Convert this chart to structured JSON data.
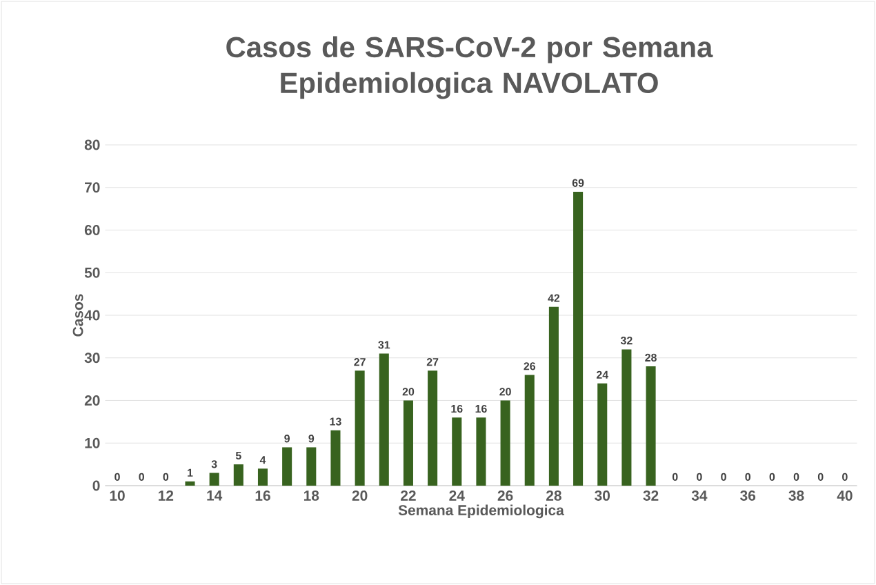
{
  "chart_data": {
    "type": "bar",
    "title": "Casos de SARS-CoV-2 por Semana Epidemiologica NAVOLATO",
    "xlabel": "Semana Epidemiologica",
    "ylabel": "Casos",
    "categories": [
      "10",
      null,
      "12",
      null,
      "14",
      null,
      "16",
      null,
      "18",
      null,
      "20",
      null,
      "22",
      null,
      "24",
      null,
      "26",
      null,
      "28",
      null,
      "30",
      null,
      "32",
      null,
      "34",
      null,
      "36",
      null,
      "38",
      null,
      "40"
    ],
    "values": [
      0,
      0,
      0,
      1,
      3,
      5,
      4,
      9,
      9,
      13,
      27,
      31,
      20,
      27,
      16,
      16,
      20,
      26,
      42,
      69,
      24,
      32,
      28,
      0,
      0,
      0,
      0,
      0,
      0,
      0,
      0
    ],
    "color": "#38631f",
    "ylim": [
      0,
      80
    ],
    "yticks": [
      0,
      10,
      20,
      30,
      40,
      50,
      60,
      70,
      80
    ],
    "grid": "y",
    "data_labels": true
  }
}
